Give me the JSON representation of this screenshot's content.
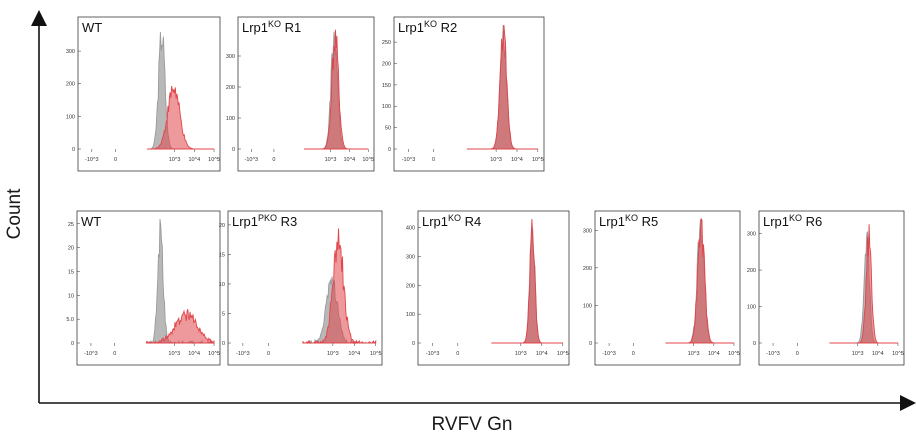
{
  "chart_data": {
    "type": "area",
    "xlabel": "RVFV Gn",
    "ylabel": "Count",
    "x_scale": "biexponential",
    "x_ticks": [
      "-10^3",
      "0",
      "10^3",
      "10^4",
      "10^5"
    ],
    "colors": {
      "reference": "#9a9a9a",
      "sample": "#e0454b"
    },
    "panels": [
      {
        "row": 1,
        "label": "WT",
        "superscript": "",
        "ylim": [
          0,
          380
        ],
        "y_ticks": [
          "0",
          "100",
          "200",
          "300"
        ],
        "series": [
          {
            "role": "reference",
            "center": 2.35,
            "width": 0.16,
            "peak": 350
          },
          {
            "role": "sample",
            "center": 2.95,
            "width": 0.3,
            "peak": 185
          }
        ]
      },
      {
        "row": 1,
        "label": "Lrp1",
        "superscript": "KO",
        "suffix": " R1",
        "ylim": [
          0,
          400
        ],
        "y_ticks": [
          "0",
          "100",
          "200",
          "300"
        ],
        "series": [
          {
            "role": "reference",
            "center": 3.2,
            "width": 0.17,
            "peak": 365
          },
          {
            "role": "sample",
            "center": 3.25,
            "width": 0.18,
            "peak": 350
          }
        ]
      },
      {
        "row": 1,
        "label": "Lrp1",
        "superscript": "KO",
        "suffix": " R2",
        "ylim": [
          0,
          290
        ],
        "y_ticks": [
          "0",
          "50",
          "100",
          "150",
          "200",
          "250"
        ],
        "series": [
          {
            "role": "reference",
            "center": 3.35,
            "width": 0.16,
            "peak": 265
          },
          {
            "role": "sample",
            "center": 3.35,
            "width": 0.16,
            "peak": 272
          }
        ]
      },
      {
        "row": 2,
        "label": "WT",
        "superscript": "",
        "ylim": [
          0,
          26
        ],
        "y_ticks": [
          "0",
          "5.0",
          "10",
          "15",
          "20",
          "25"
        ],
        "series": [
          {
            "role": "reference",
            "center": 2.3,
            "width": 0.14,
            "peak": 23
          },
          {
            "role": "sample",
            "center": 3.6,
            "width": 0.55,
            "peak": 6
          }
        ]
      },
      {
        "row": 2,
        "label": "Lrp1",
        "superscript": "PKO",
        "suffix": " R3",
        "ylim": [
          0,
          21
        ],
        "y_ticks": [
          "0",
          "5",
          "10",
          "15",
          "20"
        ],
        "series": [
          {
            "role": "reference",
            "center": 2.95,
            "width": 0.25,
            "peak": 11
          },
          {
            "role": "sample",
            "center": 3.25,
            "width": 0.25,
            "peak": 17
          }
        ]
      },
      {
        "row": 2,
        "label": "Lrp1",
        "superscript": "KO",
        "suffix": " R4",
        "ylim": [
          0,
          430
        ],
        "y_ticks": [
          "0",
          "100",
          "200",
          "300",
          "400"
        ],
        "series": [
          {
            "role": "reference",
            "center": 3.55,
            "width": 0.12,
            "peak": 400
          },
          {
            "role": "sample",
            "center": 3.55,
            "width": 0.12,
            "peak": 395
          }
        ]
      },
      {
        "row": 2,
        "label": "Lrp1",
        "superscript": "KO",
        "suffix": " R5",
        "ylim": [
          0,
          330
        ],
        "y_ticks": [
          "0",
          "100",
          "200",
          "300"
        ],
        "series": [
          {
            "role": "reference",
            "center": 3.35,
            "width": 0.17,
            "peak": 318
          },
          {
            "role": "sample",
            "center": 3.37,
            "width": 0.17,
            "peak": 305
          }
        ]
      },
      {
        "row": 2,
        "label": "Lrp1",
        "superscript": "KO",
        "suffix": " R6",
        "ylim": [
          0,
          340
        ],
        "y_ticks": [
          "0",
          "100",
          "200",
          "300"
        ],
        "series": [
          {
            "role": "reference",
            "center": 3.45,
            "width": 0.13,
            "peak": 300
          },
          {
            "role": "sample",
            "center": 3.55,
            "width": 0.13,
            "peak": 285
          }
        ]
      }
    ]
  }
}
